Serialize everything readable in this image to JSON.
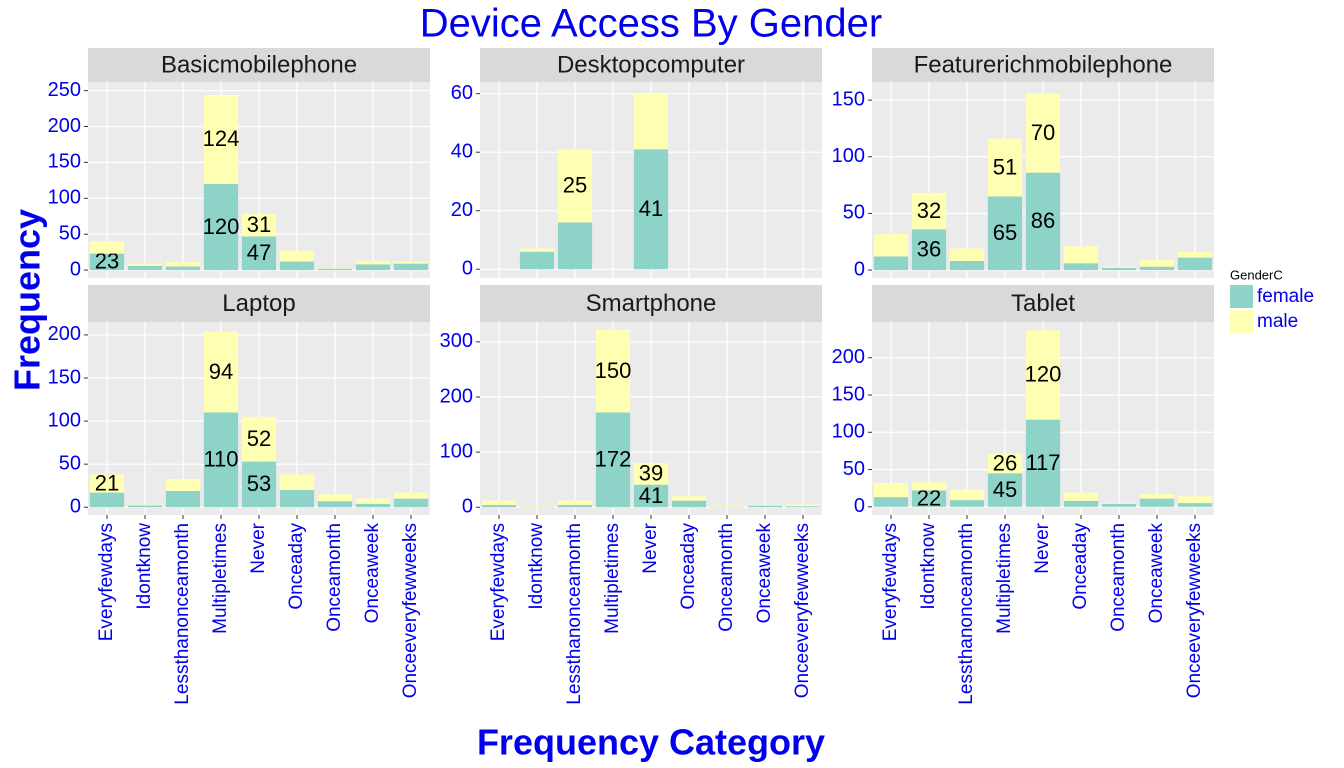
{
  "title": "Device Access By Gender",
  "xlabel": "Frequency Category",
  "ylabel": "Frequency",
  "legend": {
    "title": "GenderC"
  },
  "chart_data": [
    {
      "type": "bar",
      "stacked": true,
      "title": "Basicmobilephone",
      "categories": [
        "Everyfewdays",
        "Idontknow",
        "Lessthanonceamonth",
        "Multipletimes",
        "Never",
        "Onceaday",
        "Onceamonth",
        "Onceaweek",
        "Onceeveryfewweeks"
      ],
      "series": [
        {
          "name": "female",
          "color": "#8DD3C7",
          "values": [
            23,
            6,
            5,
            120,
            47,
            12,
            2,
            8,
            9
          ],
          "value_labels": [
            "23",
            null,
            null,
            "120",
            "47",
            null,
            null,
            null,
            null
          ]
        },
        {
          "name": "male",
          "color": "#FFFFB3",
          "values": [
            17,
            3,
            6,
            124,
            31,
            15,
            1,
            5,
            3
          ],
          "value_labels": [
            null,
            null,
            null,
            "124",
            "31",
            null,
            null,
            null,
            null
          ]
        }
      ],
      "ylim": [
        -11,
        262
      ],
      "yticks": [
        0,
        50,
        100,
        150,
        200,
        250
      ],
      "grid": true
    },
    {
      "type": "bar",
      "stacked": true,
      "title": "Desktopcomputer",
      "categories": [
        "Everyfewdays",
        "Idontknow",
        "Lessthanonceamonth",
        "Multipletimes",
        "Never",
        "Onceaday",
        "Onceamonth",
        "Onceaweek",
        "Onceeveryfewweeks"
      ],
      "series": [
        {
          "name": "female",
          "color": "#8DD3C7",
          "values": [
            0,
            6,
            16,
            0,
            41,
            0,
            0,
            0,
            0
          ],
          "value_labels": [
            null,
            null,
            null,
            null,
            "41",
            null,
            null,
            null,
            null
          ]
        },
        {
          "name": "male",
          "color": "#FFFFB3",
          "values": [
            0,
            1,
            25,
            0,
            19,
            0,
            0,
            0,
            0
          ],
          "value_labels": [
            null,
            null,
            "25",
            null,
            null,
            null,
            null,
            null,
            null
          ]
        }
      ],
      "ylim": [
        -3,
        64
      ],
      "yticks": [
        0,
        20,
        40,
        60
      ],
      "grid": true
    },
    {
      "type": "bar",
      "stacked": true,
      "title": "Featurerichmobilephone",
      "categories": [
        "Everyfewdays",
        "Idontknow",
        "Lessthanonceamonth",
        "Multipletimes",
        "Never",
        "Onceaday",
        "Onceamonth",
        "Onceaweek",
        "Onceeveryfewweeks"
      ],
      "series": [
        {
          "name": "female",
          "color": "#8DD3C7",
          "values": [
            12,
            36,
            8,
            65,
            86,
            6,
            2,
            3,
            11
          ],
          "value_labels": [
            null,
            "36",
            null,
            "65",
            "86",
            null,
            null,
            null,
            null
          ]
        },
        {
          "name": "male",
          "color": "#FFFFB3",
          "values": [
            20,
            32,
            11,
            51,
            70,
            15,
            1,
            6,
            5
          ],
          "value_labels": [
            null,
            "32",
            null,
            "51",
            "70",
            null,
            null,
            null,
            null
          ]
        }
      ],
      "ylim": [
        -7,
        166
      ],
      "yticks": [
        0,
        50,
        100,
        150
      ],
      "grid": true
    },
    {
      "type": "bar",
      "stacked": true,
      "title": "Laptop",
      "categories": [
        "Everyfewdays",
        "Idontknow",
        "Lessthanonceamonth",
        "Multipletimes",
        "Never",
        "Onceaday",
        "Onceamonth",
        "Onceaweek",
        "Onceeveryfewweeks"
      ],
      "series": [
        {
          "name": "female",
          "color": "#8DD3C7",
          "values": [
            17,
            2,
            19,
            110,
            53,
            20,
            7,
            4,
            10
          ],
          "value_labels": [
            null,
            null,
            null,
            "110",
            "53",
            null,
            null,
            null,
            null
          ]
        },
        {
          "name": "male",
          "color": "#FFFFB3",
          "values": [
            21,
            1,
            14,
            94,
            52,
            18,
            8,
            6,
            7
          ],
          "value_labels": [
            "21",
            null,
            null,
            "94",
            "52",
            null,
            null,
            null,
            null
          ]
        }
      ],
      "ylim": [
        -9,
        215
      ],
      "yticks": [
        0,
        50,
        100,
        150,
        200
      ],
      "grid": true
    },
    {
      "type": "bar",
      "stacked": true,
      "title": "Smartphone",
      "categories": [
        "Everyfewdays",
        "Idontknow",
        "Lessthanonceamonth",
        "Multipletimes",
        "Never",
        "Onceaday",
        "Onceamonth",
        "Onceaweek",
        "Onceeveryfewweeks"
      ],
      "series": [
        {
          "name": "female",
          "color": "#8DD3C7",
          "values": [
            4,
            1,
            4,
            172,
            41,
            12,
            1,
            3,
            2
          ],
          "value_labels": [
            null,
            null,
            null,
            "172",
            "41",
            null,
            null,
            null,
            null
          ]
        },
        {
          "name": "male",
          "color": "#FFFFB3",
          "values": [
            8,
            1,
            8,
            150,
            39,
            8,
            2,
            1,
            3
          ],
          "value_labels": [
            null,
            null,
            null,
            "150",
            "39",
            null,
            null,
            null,
            null
          ]
        }
      ],
      "ylim": [
        -14,
        336
      ],
      "yticks": [
        0,
        100,
        200,
        300
      ],
      "grid": true
    },
    {
      "type": "bar",
      "stacked": true,
      "title": "Tablet",
      "categories": [
        "Everyfewdays",
        "Idontknow",
        "Lessthanonceamonth",
        "Multipletimes",
        "Never",
        "Onceaday",
        "Onceamonth",
        "Onceaweek",
        "Onceeveryfewweeks"
      ],
      "series": [
        {
          "name": "female",
          "color": "#8DD3C7",
          "values": [
            13,
            22,
            9,
            45,
            117,
            8,
            4,
            11,
            5
          ],
          "value_labels": [
            null,
            "22",
            null,
            "45",
            "117",
            null,
            null,
            null,
            null
          ]
        },
        {
          "name": "male",
          "color": "#FFFFB3",
          "values": [
            19,
            11,
            14,
            26,
            120,
            11,
            1,
            6,
            9
          ],
          "value_labels": [
            null,
            null,
            null,
            "26",
            "120",
            null,
            null,
            null,
            null
          ]
        }
      ],
      "ylim": [
        -11,
        248
      ],
      "yticks": [
        0,
        50,
        100,
        150,
        200
      ],
      "grid": true
    }
  ]
}
